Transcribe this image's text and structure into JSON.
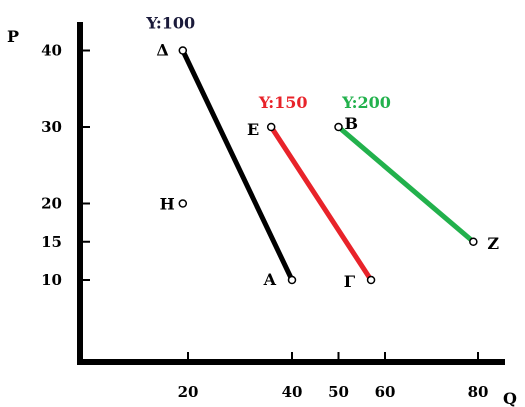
{
  "chart_data": {
    "type": "line",
    "xlabel": "Q",
    "ylabel": "P",
    "xlim": [
      0,
      85
    ],
    "ylim": [
      0,
      45
    ],
    "x_ticks": [
      20,
      40,
      50,
      60,
      80
    ],
    "y_ticks": [
      10,
      15,
      20,
      30,
      40
    ],
    "grid": false,
    "series": [
      {
        "name": "Y:100",
        "color": "#000000",
        "points": [
          {
            "label": "Δ",
            "x": 19,
            "y": 40
          },
          {
            "label": "A",
            "x": 40,
            "y": 10
          }
        ]
      },
      {
        "name": "Y:150",
        "color": "#e8232a",
        "points": [
          {
            "label": "E",
            "x": 36,
            "y": 30
          },
          {
            "label": "Γ",
            "x": 57,
            "y": 10
          }
        ]
      },
      {
        "name": "Y:200",
        "color": "#22b14c",
        "points": [
          {
            "label": "B",
            "x": 50,
            "y": 30
          },
          {
            "label": "Z",
            "x": 79,
            "y": 15
          }
        ]
      }
    ],
    "extra_points": [
      {
        "label": "H",
        "x": 19,
        "y": 20
      }
    ]
  }
}
